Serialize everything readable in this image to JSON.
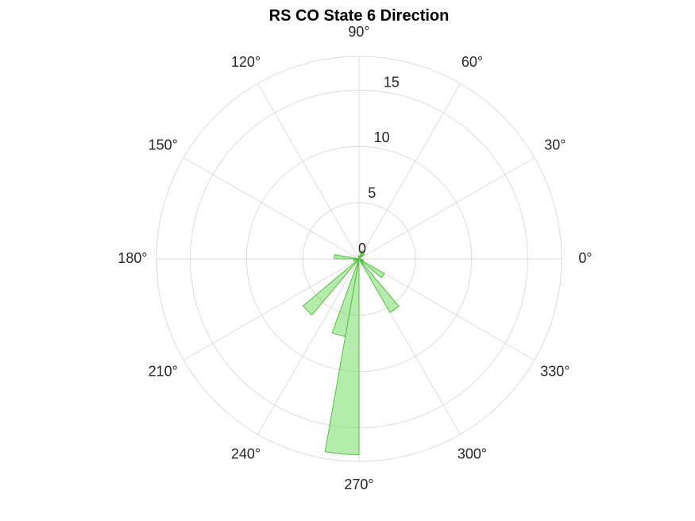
{
  "chart_data": {
    "type": "polar-histogram",
    "title": "RS  CO State 6 Direction",
    "theta_ticks": [
      {
        "deg": 0,
        "label": "0°"
      },
      {
        "deg": 30,
        "label": "30°"
      },
      {
        "deg": 60,
        "label": "60°"
      },
      {
        "deg": 90,
        "label": "90°"
      },
      {
        "deg": 120,
        "label": "120°"
      },
      {
        "deg": 150,
        "label": "150°"
      },
      {
        "deg": 180,
        "label": "180°"
      },
      {
        "deg": 210,
        "label": "210°"
      },
      {
        "deg": 240,
        "label": "240°"
      },
      {
        "deg": 270,
        "label": "270°"
      },
      {
        "deg": 300,
        "label": "300°"
      },
      {
        "deg": 330,
        "label": "330°"
      }
    ],
    "r_ticks": [
      {
        "value": 0,
        "label": "0"
      },
      {
        "value": 5,
        "label": "5"
      },
      {
        "value": 10,
        "label": "10"
      },
      {
        "value": 15,
        "label": "15"
      }
    ],
    "r_max": 18,
    "r_label_angle_deg": 80,
    "grid": true,
    "bin_width_deg": 10,
    "bins": [
      {
        "center_deg": 45,
        "count": 0.6
      },
      {
        "center_deg": 65,
        "count": 0.8
      },
      {
        "center_deg": 95,
        "count": 0.3
      },
      {
        "center_deg": 175,
        "count": 2.2
      },
      {
        "center_deg": 195,
        "count": 0.5
      },
      {
        "center_deg": 225,
        "count": 6.5
      },
      {
        "center_deg": 255,
        "count": 7.0
      },
      {
        "center_deg": 265,
        "count": 17.4
      },
      {
        "center_deg": 305,
        "count": 5.5
      },
      {
        "center_deg": 325,
        "count": 2.6
      },
      {
        "center_deg": 345,
        "count": 0.4
      }
    ],
    "colors": {
      "face": "#77dd66",
      "face_opacity": 0.55,
      "edge": "#55c040"
    }
  }
}
